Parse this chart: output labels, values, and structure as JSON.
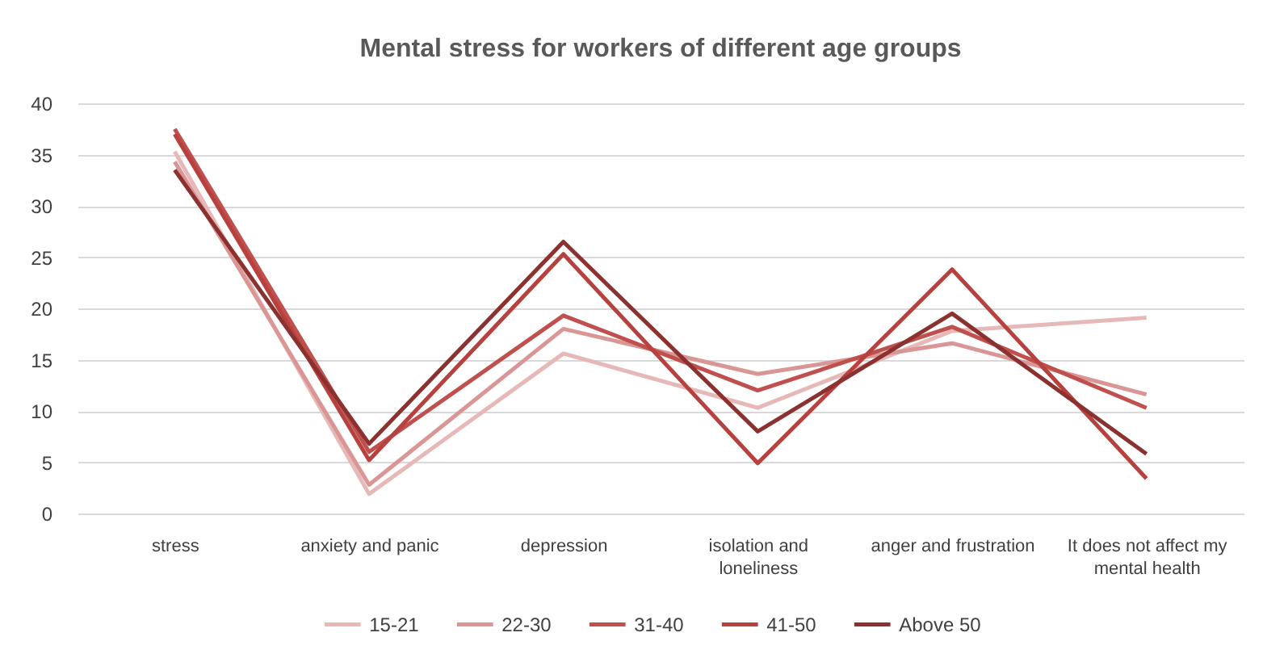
{
  "chart_data": {
    "type": "line",
    "title": "Mental stress for workers of different age groups",
    "categories": [
      "stress",
      "anxiety and panic",
      "depression",
      "isolation and loneliness",
      "anger and frustration",
      "It does not affect my mental health"
    ],
    "series": [
      {
        "name": "15-21",
        "color": "#e6b9b8",
        "values": [
          35.3,
          1.9,
          15.6,
          10.3,
          17.8,
          19.1
        ]
      },
      {
        "name": "22-30",
        "color": "#d99694",
        "values": [
          34.3,
          2.8,
          18.0,
          13.6,
          16.6,
          11.6
        ]
      },
      {
        "name": "31-40",
        "color": "#c0504d",
        "values": [
          37.5,
          6.0,
          19.3,
          12.0,
          18.2,
          10.3
        ]
      },
      {
        "name": "41-50",
        "color": "#b7413e",
        "values": [
          37.0,
          5.2,
          25.3,
          4.9,
          23.8,
          3.4
        ]
      },
      {
        "name": "Above 50",
        "color": "#8b3130",
        "values": [
          33.5,
          6.8,
          26.5,
          8.0,
          19.5,
          5.8
        ]
      }
    ],
    "ylim": [
      0,
      40
    ],
    "yticks": [
      0,
      5,
      10,
      15,
      20,
      25,
      30,
      35,
      40
    ],
    "grid": "y",
    "legend": "bottom"
  }
}
